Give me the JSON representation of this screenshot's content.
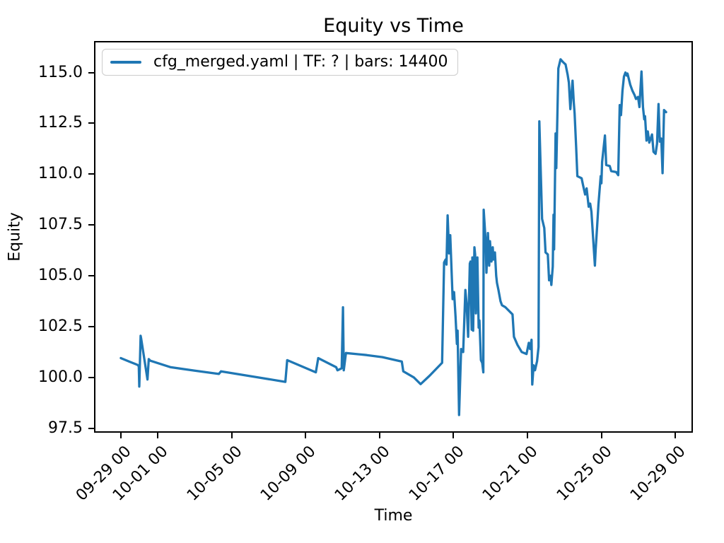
{
  "chart_data": {
    "type": "line",
    "title": "Equity vs Time",
    "xlabel": "Time",
    "ylabel": "Equity",
    "grid": false,
    "legend_position": "upper left",
    "axis_color": "#000000",
    "legend_border_color": "#cccccc",
    "x_unit": "days since 09-29 00:00",
    "xlim": [
      -1.45,
      30.95
    ],
    "ylim": [
      97.28,
      116.55
    ],
    "x_ticks": [
      {
        "day": 0,
        "label": "09-29 00"
      },
      {
        "day": 2,
        "label": "10-01 00"
      },
      {
        "day": 6,
        "label": "10-05 00"
      },
      {
        "day": 10,
        "label": "10-09 00"
      },
      {
        "day": 14,
        "label": "10-13 00"
      },
      {
        "day": 18,
        "label": "10-17 00"
      },
      {
        "day": 22,
        "label": "10-21 00"
      },
      {
        "day": 26,
        "label": "10-25 00"
      },
      {
        "day": 30,
        "label": "10-29 00"
      }
    ],
    "y_ticks": [
      {
        "value": 97.5,
        "label": "97.5"
      },
      {
        "value": 100.0,
        "label": "100.0"
      },
      {
        "value": 102.5,
        "label": "102.5"
      },
      {
        "value": 105.0,
        "label": "105.0"
      },
      {
        "value": 107.5,
        "label": "107.5"
      },
      {
        "value": 110.0,
        "label": "110.0"
      },
      {
        "value": 112.5,
        "label": "112.5"
      },
      {
        "value": 115.0,
        "label": "115.0"
      }
    ],
    "series": [
      {
        "name": "cfg_merged.yaml | TF: ? | bars: 14400",
        "color": "#1f77b4",
        "line_width": 3.3,
        "points": [
          [
            0.0,
            100.95
          ],
          [
            0.45,
            100.78
          ],
          [
            0.9,
            100.62
          ],
          [
            0.97,
            100.55
          ],
          [
            1.0,
            99.55
          ],
          [
            1.07,
            102.05
          ],
          [
            1.1,
            101.9
          ],
          [
            1.44,
            99.9
          ],
          [
            1.51,
            100.9
          ],
          [
            1.6,
            100.82
          ],
          [
            2.7,
            100.5
          ],
          [
            4.0,
            100.33
          ],
          [
            5.3,
            100.17
          ],
          [
            5.42,
            100.3
          ],
          [
            7.3,
            100.02
          ],
          [
            8.9,
            99.78
          ],
          [
            9.0,
            100.85
          ],
          [
            10.55,
            100.25
          ],
          [
            10.68,
            100.95
          ],
          [
            11.65,
            100.5
          ],
          [
            11.72,
            100.35
          ],
          [
            11.95,
            100.45
          ],
          [
            12.02,
            103.45
          ],
          [
            12.06,
            100.35
          ],
          [
            12.18,
            101.2
          ],
          [
            13.3,
            101.1
          ],
          [
            14.15,
            101.0
          ],
          [
            15.2,
            100.78
          ],
          [
            15.28,
            100.3
          ],
          [
            15.85,
            100.0
          ],
          [
            16.22,
            99.67
          ],
          [
            16.7,
            100.08
          ],
          [
            17.38,
            100.72
          ],
          [
            17.49,
            105.65
          ],
          [
            17.57,
            105.8
          ],
          [
            17.62,
            105.55
          ],
          [
            17.68,
            107.97
          ],
          [
            17.76,
            106.1
          ],
          [
            17.82,
            107.0
          ],
          [
            17.95,
            103.85
          ],
          [
            18.03,
            104.2
          ],
          [
            18.11,
            103.0
          ],
          [
            18.18,
            101.65
          ],
          [
            18.22,
            102.3
          ],
          [
            18.3,
            98.15
          ],
          [
            18.41,
            101.4
          ],
          [
            18.52,
            101.25
          ],
          [
            18.64,
            104.3
          ],
          [
            18.71,
            103.6
          ],
          [
            18.79,
            102.0
          ],
          [
            18.88,
            105.6
          ],
          [
            18.92,
            105.7
          ],
          [
            18.98,
            102.35
          ],
          [
            19.02,
            105.9
          ],
          [
            19.06,
            102.3
          ],
          [
            19.13,
            106.4
          ],
          [
            19.17,
            106.05
          ],
          [
            19.21,
            103.15
          ],
          [
            19.29,
            105.9
          ],
          [
            19.36,
            102.45
          ],
          [
            19.4,
            102.8
          ],
          [
            19.48,
            100.85
          ],
          [
            19.55,
            100.72
          ],
          [
            19.61,
            100.25
          ],
          [
            19.63,
            108.25
          ],
          [
            19.74,
            106.7
          ],
          [
            19.78,
            105.15
          ],
          [
            19.86,
            107.1
          ],
          [
            19.93,
            105.5
          ],
          [
            19.97,
            106.7
          ],
          [
            20.05,
            105.7
          ],
          [
            20.12,
            106.4
          ],
          [
            20.16,
            105.8
          ],
          [
            20.24,
            106.15
          ],
          [
            20.31,
            105.0
          ],
          [
            20.35,
            104.65
          ],
          [
            20.43,
            104.3
          ],
          [
            20.54,
            103.75
          ],
          [
            20.62,
            103.55
          ],
          [
            20.81,
            103.45
          ],
          [
            21.19,
            103.1
          ],
          [
            21.27,
            102.0
          ],
          [
            21.46,
            101.6
          ],
          [
            21.69,
            101.25
          ],
          [
            21.95,
            101.15
          ],
          [
            22.07,
            101.7
          ],
          [
            22.14,
            101.4
          ],
          [
            22.22,
            101.85
          ],
          [
            22.26,
            99.65
          ],
          [
            22.33,
            100.6
          ],
          [
            22.41,
            100.35
          ],
          [
            22.52,
            100.8
          ],
          [
            22.6,
            101.5
          ],
          [
            22.64,
            112.6
          ],
          [
            22.79,
            107.8
          ],
          [
            22.91,
            107.35
          ],
          [
            22.98,
            106.15
          ],
          [
            23.1,
            106.05
          ],
          [
            23.17,
            104.78
          ],
          [
            23.25,
            105.0
          ],
          [
            23.29,
            104.55
          ],
          [
            23.37,
            105.45
          ],
          [
            23.41,
            108.0
          ],
          [
            23.44,
            106.3
          ],
          [
            23.52,
            112.0
          ],
          [
            23.56,
            110.3
          ],
          [
            23.67,
            115.2
          ],
          [
            23.79,
            115.65
          ],
          [
            23.94,
            115.5
          ],
          [
            24.06,
            115.4
          ],
          [
            24.17,
            114.9
          ],
          [
            24.24,
            114.5
          ],
          [
            24.32,
            113.2
          ],
          [
            24.44,
            114.6
          ],
          [
            24.51,
            113.5
          ],
          [
            24.55,
            113.0
          ],
          [
            24.63,
            111.4
          ],
          [
            24.7,
            109.9
          ],
          [
            24.93,
            109.8
          ],
          [
            25.01,
            109.45
          ],
          [
            25.12,
            109.0
          ],
          [
            25.2,
            109.3
          ],
          [
            25.31,
            108.4
          ],
          [
            25.39,
            108.55
          ],
          [
            25.46,
            108.15
          ],
          [
            25.65,
            105.5
          ],
          [
            25.69,
            106.3
          ],
          [
            25.77,
            107.45
          ],
          [
            25.84,
            108.5
          ],
          [
            25.96,
            109.9
          ],
          [
            26.0,
            109.55
          ],
          [
            26.04,
            110.6
          ],
          [
            26.19,
            111.9
          ],
          [
            26.26,
            110.45
          ],
          [
            26.45,
            110.4
          ],
          [
            26.53,
            110.15
          ],
          [
            26.8,
            110.1
          ],
          [
            26.91,
            109.95
          ],
          [
            26.99,
            113.4
          ],
          [
            27.06,
            112.9
          ],
          [
            27.14,
            114.1
          ],
          [
            27.22,
            114.8
          ],
          [
            27.3,
            115.0
          ],
          [
            27.37,
            114.85
          ],
          [
            27.41,
            114.95
          ],
          [
            27.56,
            114.4
          ],
          [
            27.68,
            114.1
          ],
          [
            27.79,
            113.9
          ],
          [
            27.87,
            113.7
          ],
          [
            27.98,
            113.8
          ],
          [
            28.06,
            113.3
          ],
          [
            28.17,
            115.05
          ],
          [
            28.25,
            113.3
          ],
          [
            28.32,
            112.7
          ],
          [
            28.36,
            112.85
          ],
          [
            28.44,
            111.65
          ],
          [
            28.51,
            112.1
          ],
          [
            28.59,
            111.55
          ],
          [
            28.74,
            111.95
          ],
          [
            28.82,
            111.1
          ],
          [
            28.93,
            111.0
          ],
          [
            29.01,
            111.5
          ],
          [
            29.09,
            113.45
          ],
          [
            29.16,
            111.6
          ],
          [
            29.24,
            111.75
          ],
          [
            29.31,
            110.05
          ],
          [
            29.39,
            113.15
          ],
          [
            29.5,
            113.05
          ]
        ]
      }
    ]
  }
}
